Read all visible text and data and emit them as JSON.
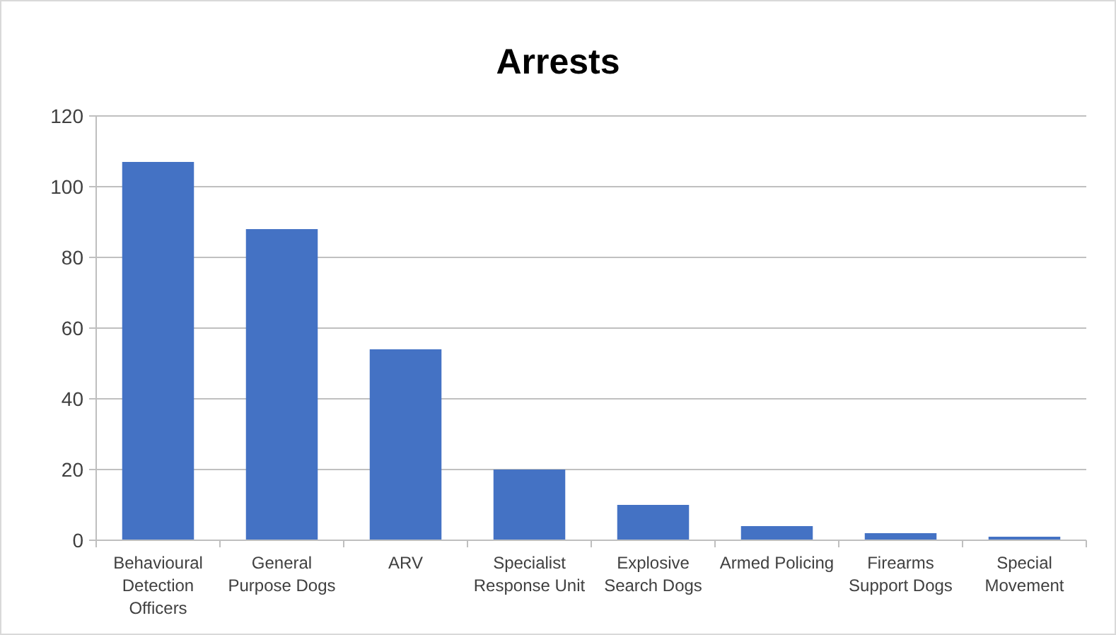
{
  "chart_data": {
    "type": "bar",
    "title": "Arrests",
    "categories": [
      "Behavioural Detection Officers",
      "General Purpose Dogs",
      "ARV",
      "Specialist Response Unit",
      "Explosive Search Dogs",
      "Armed Policing",
      "Firearms Support Dogs",
      "Special Movement"
    ],
    "values": [
      107,
      88,
      54,
      20,
      10,
      4,
      2,
      1
    ],
    "color": "#4472c4",
    "ylim": [
      0,
      120
    ],
    "yticks": [
      0,
      20,
      40,
      60,
      80,
      100,
      120
    ],
    "grid": "y"
  }
}
